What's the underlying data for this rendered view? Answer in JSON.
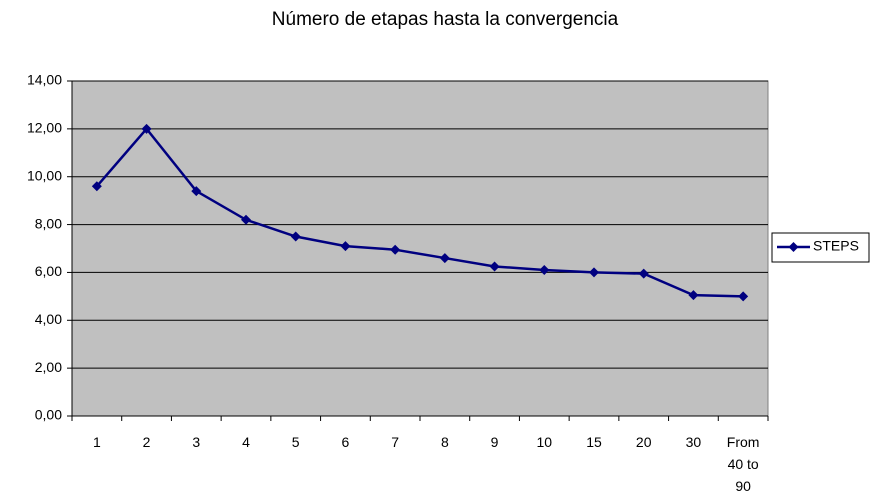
{
  "chart_data": {
    "type": "line",
    "title": "Número de etapas hasta la convergencia",
    "categories": [
      "1",
      "2",
      "3",
      "4",
      "5",
      "6",
      "7",
      "8",
      "9",
      "10",
      "15",
      "20",
      "30",
      "From 40 to 90"
    ],
    "series": [
      {
        "name": "STEPS",
        "color": "#000080",
        "values": [
          9.6,
          12.0,
          9.4,
          8.2,
          7.5,
          7.1,
          6.95,
          6.6,
          6.25,
          6.1,
          6.0,
          5.95,
          5.05,
          5.0
        ]
      }
    ],
    "ylim": [
      0,
      14
    ],
    "yticks": [
      {
        "value": 0,
        "label": "0,00"
      },
      {
        "value": 2,
        "label": "2,00"
      },
      {
        "value": 4,
        "label": "4,00"
      },
      {
        "value": 6,
        "label": "6,00"
      },
      {
        "value": 8,
        "label": "8,00"
      },
      {
        "value": 10,
        "label": "10,00"
      },
      {
        "value": 12,
        "label": "12,00"
      },
      {
        "value": 14,
        "label": "14,00"
      }
    ],
    "grid": true,
    "legend": "right"
  }
}
